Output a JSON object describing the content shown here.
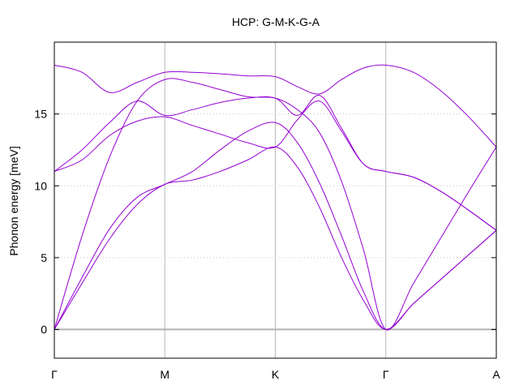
{
  "chart_data": {
    "type": "line",
    "title": "HCP: G-M-K-G-A",
    "xlabel": "",
    "ylabel": "Phonon energy [meV]",
    "x_ticks": [
      "Γ",
      "M",
      "K",
      "Γ",
      "A"
    ],
    "x_tick_positions": [
      0,
      1,
      2,
      3,
      4
    ],
    "xlim": [
      0,
      4
    ],
    "ylim": [
      -2,
      20
    ],
    "y_ticks": [
      0,
      5,
      10,
      15
    ],
    "grid": true,
    "legend": "none",
    "zero_line": 0,
    "line_color": "#9400d3",
    "series": [
      {
        "x": [
          0,
          0.25,
          0.5,
          0.75,
          1,
          1.25,
          1.5,
          1.75,
          2,
          2.2,
          2.4,
          2.6,
          2.8,
          3,
          3.25,
          3.5,
          3.75,
          4
        ],
        "values": [
          0,
          3.2,
          6.3,
          8.7,
          10.1,
          10.4,
          11.0,
          11.8,
          12.7,
          11.3,
          8.5,
          5.0,
          2.0,
          0,
          1.8,
          3.5,
          5.2,
          6.9
        ]
      },
      {
        "x": [
          0,
          0.25,
          0.5,
          0.75,
          1,
          1.25,
          1.5,
          1.75,
          2,
          2.2,
          2.4,
          2.6,
          2.8,
          3,
          3.25,
          3.5,
          3.75,
          4
        ],
        "values": [
          0,
          3.6,
          7.0,
          9.2,
          10.1,
          11.0,
          12.5,
          13.8,
          14.4,
          13.0,
          10.2,
          6.5,
          2.6,
          0,
          1.8,
          3.5,
          5.2,
          6.9
        ]
      },
      {
        "x": [
          0,
          0.25,
          0.5,
          0.75,
          1,
          1.25,
          1.5,
          1.75,
          2,
          2.2,
          2.4,
          2.6,
          2.8,
          3,
          3.25,
          3.5,
          3.75,
          4
        ],
        "values": [
          0,
          6.5,
          12.0,
          15.9,
          17.4,
          17.2,
          16.7,
          16.2,
          16.1,
          15.3,
          13.7,
          10.3,
          5.5,
          0,
          3.2,
          6.4,
          9.6,
          12.7
        ]
      },
      {
        "x": [
          0,
          0.25,
          0.5,
          0.75,
          1,
          1.25,
          1.5,
          1.75,
          2,
          2.2,
          2.4,
          2.6,
          2.8,
          3,
          3.25,
          3.5,
          3.75,
          4
        ],
        "values": [
          11.0,
          11.8,
          13.5,
          14.5,
          14.8,
          14.2,
          13.6,
          13.0,
          12.7,
          14.6,
          15.9,
          13.8,
          11.5,
          11.0,
          10.6,
          9.6,
          8.3,
          6.9
        ]
      },
      {
        "x": [
          0,
          0.25,
          0.5,
          0.75,
          1,
          1.25,
          1.5,
          1.75,
          2,
          2.2,
          2.4,
          2.6,
          2.8,
          3,
          3.25,
          3.5,
          3.75,
          4
        ],
        "values": [
          11.0,
          12.5,
          14.4,
          15.9,
          14.9,
          15.3,
          15.8,
          16.1,
          16.1,
          14.9,
          16.3,
          14.0,
          11.5,
          11.0,
          10.6,
          9.6,
          8.3,
          6.9
        ]
      },
      {
        "x": [
          0,
          0.25,
          0.5,
          0.75,
          1,
          1.25,
          1.5,
          1.75,
          2,
          2.2,
          2.4,
          2.6,
          2.8,
          3,
          3.25,
          3.5,
          3.75,
          4
        ],
        "values": [
          18.4,
          17.9,
          16.5,
          17.2,
          17.9,
          17.9,
          17.8,
          17.65,
          17.6,
          16.9,
          16.4,
          17.4,
          18.2,
          18.4,
          17.9,
          16.6,
          14.8,
          12.7
        ]
      }
    ]
  }
}
